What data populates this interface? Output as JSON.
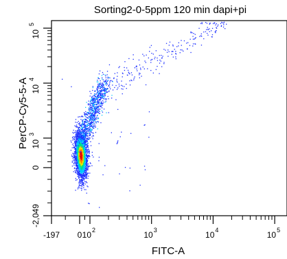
{
  "chart_data": {
    "type": "scatter",
    "style": "density-colored dot plot",
    "title": "Sorting2-0-5ppm 120 min dapi+pi",
    "xlabel": "FITC-A",
    "ylabel": "PerCP-Cy5-5-A",
    "x_scale": "biexponential",
    "y_scale": "biexponential",
    "xlim": [
      -197,
      262144
    ],
    "ylim": [
      -2049,
      262144
    ],
    "x_ticks": [
      {
        "label": "-197",
        "value": -197
      },
      {
        "label": "0",
        "value": 0
      },
      {
        "label": "10",
        "exp": "2",
        "value": 100
      },
      {
        "label": "10",
        "exp": "3",
        "value": 1000
      },
      {
        "label": "10",
        "exp": "4",
        "value": 10000
      },
      {
        "label": "10",
        "exp": "5",
        "value": 100000
      }
    ],
    "y_ticks": [
      {
        "label": "-2,049",
        "value": -2049
      },
      {
        "label": "0",
        "value": 0
      },
      {
        "label": "10",
        "exp": "3",
        "value": 1000
      },
      {
        "label": "10",
        "exp": "4",
        "value": 10000
      },
      {
        "label": "10",
        "exp": "5",
        "value": 100000
      }
    ],
    "population": {
      "main_cluster_center": {
        "x": 10,
        "y": 400
      },
      "trail_end": {
        "x": 30000,
        "y": 200000
      }
    },
    "density_colors": [
      "#1a2dff",
      "#00c8ff",
      "#00e08a",
      "#e8e800",
      "#ff7a00",
      "#e60000"
    ],
    "frame_color": "#000000"
  }
}
